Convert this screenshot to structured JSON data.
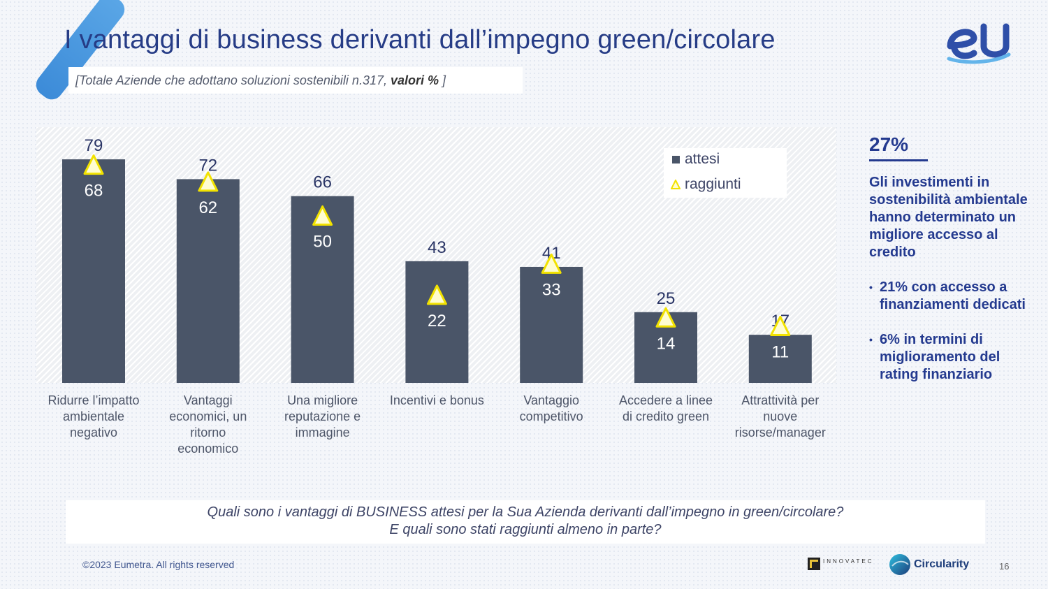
{
  "title": "I vantaggi di business derivanti dall’impegno green/circolare",
  "subtitle": {
    "text": "[Totale Aziende che adottano soluzioni sostenibili n.317, ",
    "bold": "valori %",
    "close": " ]"
  },
  "logo_text": "eU",
  "colors": {
    "bar": "#4a5568",
    "triangle_fill": "#fffdd0",
    "triangle_stroke": "#f2e200",
    "title": "#263c86",
    "accent": "#243a8f"
  },
  "chart_data": {
    "type": "bar",
    "categories": [
      "Ridurre l’impatto ambientale negativo",
      "Vantaggi economici, un ritorno economico",
      "Una migliore reputazione e immagine",
      "Incentivi e bonus",
      "Vantaggio competitivo",
      "Accedere a linee di credito green",
      "Attrattività per nuove risorse/manager"
    ],
    "category_lines": [
      [
        "Ridurre l’impatto",
        "ambientale",
        "negativo"
      ],
      [
        "Vantaggi",
        "economici, un",
        "ritorno",
        "economico"
      ],
      [
        "Una migliore",
        "reputazione e",
        "immagine"
      ],
      [
        "Incentivi e bonus"
      ],
      [
        "Vantaggio",
        "competitivo"
      ],
      [
        "Accedere a linee",
        "di credito green"
      ],
      [
        "Attrattività per",
        "nuove",
        "risorse/manager"
      ]
    ],
    "series": [
      {
        "name": "attesi",
        "values": [
          79,
          72,
          66,
          43,
          41,
          25,
          17
        ],
        "marker": "bar"
      },
      {
        "name": "raggiunti",
        "values": [
          68,
          62,
          50,
          22,
          33,
          14,
          11
        ],
        "marker": "triangle"
      }
    ],
    "ylim": [
      0,
      85
    ],
    "legend": "top-right",
    "grid": false
  },
  "side_panel": {
    "percent": "27%",
    "headline": "Gli investimenti in sostenibilità ambientale hanno determinato un migliore accesso al credito",
    "bullets": [
      "21% con accesso a finanziamenti dedicati",
      "6% in termini di miglioramento del rating finanziario"
    ]
  },
  "question": {
    "line1": "Quali sono i vantaggi di BUSINESS attesi per la Sua Azienda derivanti dall’impegno in green/circolare?",
    "line2": "E quali sono stati raggiunti almeno in parte?"
  },
  "footer": {
    "copyright": "©2023 Eumetra. All rights reserved",
    "partner1": "INNOVATEC",
    "partner2": "Circularity",
    "page": "16"
  }
}
